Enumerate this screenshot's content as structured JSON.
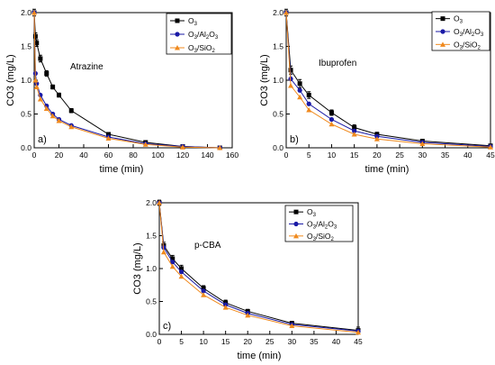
{
  "chart_data": [
    {
      "type": "line",
      "panel_label": "a)",
      "annotation": "Atrazine",
      "xlabel": "time (min)",
      "ylabel": "CO3 (mg/L)",
      "xlim": [
        0,
        160
      ],
      "ylim": [
        0,
        2.0
      ],
      "xticks": [
        "0",
        "20",
        "40",
        "60",
        "80",
        "100",
        "120",
        "140",
        "160"
      ],
      "yticks": [
        "0.0",
        "0.5",
        "1.0",
        "1.5",
        "2.0"
      ],
      "legend_position": "top-right",
      "series": [
        {
          "name": "O3",
          "legend_main": "O",
          "legend_sub": "3",
          "color": "#000000",
          "marker": "square",
          "x": [
            0,
            1,
            2,
            5,
            10,
            15,
            20,
            30,
            60,
            90,
            120,
            150
          ],
          "y": [
            2.0,
            1.65,
            1.55,
            1.32,
            1.1,
            0.9,
            0.78,
            0.55,
            0.2,
            0.08,
            0.02,
            0.0
          ],
          "err": [
            0.05,
            0.05,
            0.05,
            0.05,
            0.04,
            0.03,
            0.03,
            0.03,
            0.02,
            0.01,
            0.01,
            0.01
          ]
        },
        {
          "name": "O3/Al2O3",
          "legend_main": "O",
          "legend_sub": "3",
          "legend_mid": "/Al",
          "legend_sub2": "2",
          "legend_end": "O",
          "legend_sub3": "3",
          "color": "#1a1aa6",
          "marker": "circle",
          "x": [
            0,
            1,
            2,
            5,
            10,
            15,
            20,
            30,
            60,
            90,
            120,
            150
          ],
          "y": [
            2.0,
            1.1,
            0.95,
            0.78,
            0.62,
            0.5,
            0.42,
            0.33,
            0.16,
            0.06,
            0.02,
            0.0
          ]
        },
        {
          "name": "O3/SiO2",
          "legend_main": "O",
          "legend_sub": "3",
          "legend_mid": "/SiO",
          "legend_sub2": "2",
          "color": "#f08a1e",
          "marker": "triangle",
          "x": [
            0,
            1,
            2,
            5,
            10,
            15,
            20,
            30,
            60,
            90,
            120,
            150
          ],
          "y": [
            2.0,
            1.0,
            0.9,
            0.72,
            0.58,
            0.47,
            0.4,
            0.31,
            0.14,
            0.05,
            0.01,
            0.0
          ]
        }
      ]
    },
    {
      "type": "line",
      "panel_label": "b)",
      "annotation": "Ibuprofen",
      "xlabel": "time (min)",
      "ylabel": "CO3 (mg/L)",
      "xlim": [
        0,
        45
      ],
      "ylim": [
        0,
        2.0
      ],
      "xticks": [
        "0",
        "5",
        "10",
        "15",
        "20",
        "25",
        "30",
        "35",
        "40",
        "45"
      ],
      "yticks": [
        "0.0",
        "0.5",
        "1.0",
        "1.5",
        "2.0"
      ],
      "legend_position": "top-right",
      "series": [
        {
          "name": "O3",
          "color": "#000000",
          "marker": "square",
          "x": [
            0,
            1,
            3,
            5,
            10,
            15,
            20,
            30,
            45
          ],
          "y": [
            2.0,
            1.15,
            0.95,
            0.78,
            0.52,
            0.3,
            0.2,
            0.1,
            0.03
          ],
          "err": [
            0.05,
            0.06,
            0.06,
            0.05,
            0.04,
            0.04,
            0.03,
            0.02,
            0.01
          ]
        },
        {
          "name": "O3/Al2O3",
          "color": "#1a1aa6",
          "marker": "circle",
          "x": [
            0,
            1,
            3,
            5,
            10,
            15,
            20,
            30,
            45
          ],
          "y": [
            2.0,
            1.02,
            0.85,
            0.65,
            0.42,
            0.25,
            0.17,
            0.08,
            0.02
          ]
        },
        {
          "name": "O3/SiO2",
          "color": "#f08a1e",
          "marker": "triangle",
          "x": [
            0,
            1,
            3,
            5,
            10,
            15,
            20,
            30,
            45
          ],
          "y": [
            2.0,
            0.92,
            0.75,
            0.56,
            0.35,
            0.2,
            0.13,
            0.06,
            0.01
          ]
        }
      ]
    },
    {
      "type": "line",
      "panel_label": "c)",
      "annotation": "p-CBA",
      "xlabel": "time (min)",
      "ylabel": "CO3 (mg/L)",
      "xlim": [
        0,
        45
      ],
      "ylim": [
        0,
        2.0
      ],
      "xticks": [
        "0",
        "5",
        "10",
        "15",
        "20",
        "25",
        "30",
        "35",
        "40",
        "45"
      ],
      "yticks": [
        "0.0",
        "0.5",
        "1.0",
        "1.5",
        "2.0"
      ],
      "legend_position": "top-right",
      "series": [
        {
          "name": "O3",
          "color": "#000000",
          "marker": "square",
          "x": [
            0,
            1,
            3,
            5,
            10,
            15,
            20,
            30,
            45
          ],
          "y": [
            2.0,
            1.35,
            1.15,
            1.0,
            0.7,
            0.48,
            0.35,
            0.17,
            0.06
          ],
          "err": [
            0.04,
            0.05,
            0.05,
            0.05,
            0.04,
            0.04,
            0.03,
            0.02,
            0.05
          ]
        },
        {
          "name": "O3/Al2O3",
          "color": "#1a1aa6",
          "marker": "circle",
          "x": [
            0,
            1,
            3,
            5,
            10,
            15,
            20,
            30,
            45
          ],
          "y": [
            2.0,
            1.32,
            1.1,
            0.95,
            0.66,
            0.45,
            0.32,
            0.15,
            0.05
          ]
        },
        {
          "name": "O3/SiO2",
          "color": "#f08a1e",
          "marker": "triangle",
          "x": [
            0,
            1,
            3,
            5,
            10,
            15,
            20,
            30,
            45
          ],
          "y": [
            2.0,
            1.25,
            1.03,
            0.88,
            0.6,
            0.41,
            0.29,
            0.13,
            0.03
          ]
        }
      ]
    }
  ]
}
